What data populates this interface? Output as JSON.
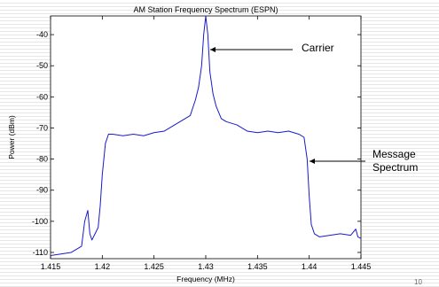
{
  "chart_data": {
    "type": "line",
    "title": "AM Station Frequency Spectrum (ESPN)",
    "xlabel": "Frequency (MHz)",
    "ylabel": "Power (dBm)",
    "xlim": [
      1.415,
      1.445
    ],
    "ylim": [
      -112,
      -34
    ],
    "xticks": [
      "1.415",
      "1.42",
      "1.425",
      "1.43",
      "1.435",
      "1.44",
      "1.445"
    ],
    "yticks": [
      "-40",
      "-50",
      "-60",
      "-70",
      "-80",
      "-90",
      "-100",
      "-110"
    ],
    "grid": false,
    "colors": {
      "line": "#1a1acc",
      "annotation": "#000000"
    },
    "series": [
      {
        "x": [
          1.415,
          1.416,
          1.417,
          1.418,
          1.4183,
          1.4186,
          1.4188,
          1.419,
          1.4193,
          1.4196,
          1.4198,
          1.42,
          1.4203,
          1.4206,
          1.421,
          1.422,
          1.423,
          1.424,
          1.425,
          1.426,
          1.427,
          1.428,
          1.4285,
          1.429,
          1.4293,
          1.4296,
          1.4298,
          1.43,
          1.4302,
          1.4304,
          1.4307,
          1.431,
          1.4315,
          1.432,
          1.433,
          1.434,
          1.435,
          1.436,
          1.437,
          1.438,
          1.439,
          1.4395,
          1.4398,
          1.44,
          1.4402,
          1.4405,
          1.441,
          1.442,
          1.443,
          1.444,
          1.4445,
          1.4447,
          1.445
        ],
        "y": [
          -111,
          -110.5,
          -110,
          -108,
          -100,
          -96.5,
          -104,
          -106,
          -104,
          -102,
          -95,
          -85,
          -75,
          -72,
          -72,
          -72.5,
          -72,
          -72.5,
          -71.5,
          -71,
          -69,
          -67,
          -66,
          -61,
          -57,
          -50,
          -40,
          -34,
          -40,
          -52,
          -59,
          -63,
          -67,
          -68,
          -69,
          -71,
          -71.5,
          -71,
          -71.5,
          -71,
          -72,
          -73,
          -80,
          -92,
          -101,
          -104,
          -105,
          -104.5,
          -104,
          -104.5,
          -102.5,
          -105,
          -105.5
        ]
      }
    ],
    "annotations": [
      {
        "text": "Carrier",
        "x": 1.43,
        "y": -42
      },
      {
        "text": "Message Spectrum",
        "x": 1.4401,
        "y": -80
      }
    ]
  },
  "page_number": "10"
}
